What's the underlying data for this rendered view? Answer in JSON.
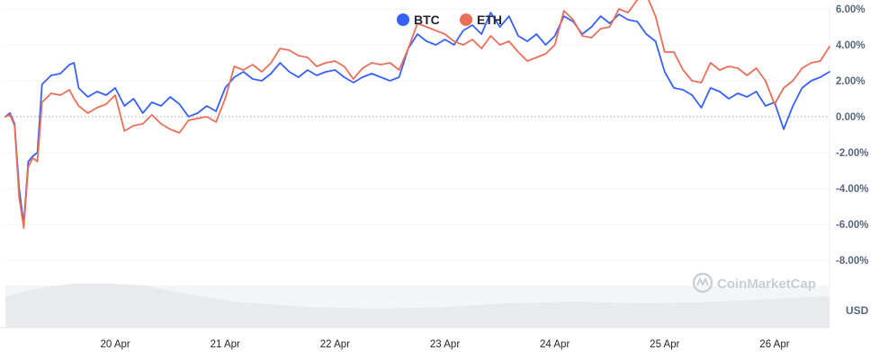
{
  "chart_data": {
    "type": "line",
    "legend": {
      "placement": "top-center"
    },
    "series": [
      {
        "name": "BTC",
        "color": "#3861fb",
        "points": [
          [
            "19 Apr 00:00",
            0.0
          ],
          [
            "19 Apr 01:00",
            0.2
          ],
          [
            "19 Apr 02:00",
            -0.4
          ],
          [
            "19 Apr 03:00",
            -4.0
          ],
          [
            "19 Apr 04:00",
            -6.0
          ],
          [
            "19 Apr 05:00",
            -2.5
          ],
          [
            "19 Apr 06:00",
            -2.2
          ],
          [
            "19 Apr 07:00",
            -2.0
          ],
          [
            "19 Apr 08:00",
            1.8
          ],
          [
            "19 Apr 10:00",
            2.3
          ],
          [
            "19 Apr 12:00",
            2.4
          ],
          [
            "19 Apr 14:00",
            2.9
          ],
          [
            "19 Apr 15:00",
            3.0
          ],
          [
            "19 Apr 16:00",
            1.6
          ],
          [
            "19 Apr 18:00",
            1.1
          ],
          [
            "19 Apr 20:00",
            1.4
          ],
          [
            "19 Apr 22:00",
            1.2
          ],
          [
            "20 Apr 00:00",
            1.6
          ],
          [
            "20 Apr 02:00",
            0.6
          ],
          [
            "20 Apr 04:00",
            1.0
          ],
          [
            "20 Apr 06:00",
            0.2
          ],
          [
            "20 Apr 08:00",
            0.8
          ],
          [
            "20 Apr 10:00",
            0.6
          ],
          [
            "20 Apr 12:00",
            1.1
          ],
          [
            "20 Apr 14:00",
            0.7
          ],
          [
            "20 Apr 16:00",
            0.0
          ],
          [
            "20 Apr 18:00",
            0.2
          ],
          [
            "20 Apr 20:00",
            0.6
          ],
          [
            "20 Apr 22:00",
            0.3
          ],
          [
            "21 Apr 00:00",
            1.6
          ],
          [
            "21 Apr 02:00",
            2.2
          ],
          [
            "21 Apr 04:00",
            2.5
          ],
          [
            "21 Apr 06:00",
            2.1
          ],
          [
            "21 Apr 08:00",
            2.0
          ],
          [
            "21 Apr 10:00",
            2.4
          ],
          [
            "21 Apr 12:00",
            3.0
          ],
          [
            "21 Apr 14:00",
            2.5
          ],
          [
            "21 Apr 16:00",
            2.2
          ],
          [
            "21 Apr 18:00",
            2.6
          ],
          [
            "21 Apr 20:00",
            2.3
          ],
          [
            "21 Apr 22:00",
            2.5
          ],
          [
            "22 Apr 00:00",
            2.6
          ],
          [
            "22 Apr 02:00",
            2.2
          ],
          [
            "22 Apr 04:00",
            1.9
          ],
          [
            "22 Apr 06:00",
            2.2
          ],
          [
            "22 Apr 08:00",
            2.4
          ],
          [
            "22 Apr 10:00",
            2.2
          ],
          [
            "22 Apr 12:00",
            2.0
          ],
          [
            "22 Apr 14:00",
            2.2
          ],
          [
            "22 Apr 16:00",
            3.8
          ],
          [
            "22 Apr 18:00",
            4.6
          ],
          [
            "22 Apr 20:00",
            4.2
          ],
          [
            "22 Apr 22:00",
            4.0
          ],
          [
            "23 Apr 00:00",
            4.3
          ],
          [
            "23 Apr 02:00",
            4.0
          ],
          [
            "23 Apr 04:00",
            4.8
          ],
          [
            "23 Apr 06:00",
            5.1
          ],
          [
            "23 Apr 08:00",
            4.6
          ],
          [
            "23 Apr 10:00",
            5.8
          ],
          [
            "23 Apr 12:00",
            5.0
          ],
          [
            "23 Apr 14:00",
            5.6
          ],
          [
            "23 Apr 16:00",
            4.5
          ],
          [
            "23 Apr 18:00",
            4.2
          ],
          [
            "23 Apr 20:00",
            4.6
          ],
          [
            "23 Apr 22:00",
            4.0
          ],
          [
            "24 Apr 00:00",
            4.5
          ],
          [
            "24 Apr 02:00",
            5.6
          ],
          [
            "24 Apr 04:00",
            5.3
          ],
          [
            "24 Apr 06:00",
            4.6
          ],
          [
            "24 Apr 08:00",
            5.0
          ],
          [
            "24 Apr 10:00",
            5.6
          ],
          [
            "24 Apr 12:00",
            5.2
          ],
          [
            "24 Apr 14:00",
            5.7
          ],
          [
            "24 Apr 16:00",
            5.4
          ],
          [
            "24 Apr 18:00",
            5.3
          ],
          [
            "24 Apr 20:00",
            4.6
          ],
          [
            "24 Apr 22:00",
            4.2
          ],
          [
            "25 Apr 00:00",
            2.5
          ],
          [
            "25 Apr 02:00",
            1.6
          ],
          [
            "25 Apr 04:00",
            1.5
          ],
          [
            "25 Apr 06:00",
            1.2
          ],
          [
            "25 Apr 08:00",
            0.5
          ],
          [
            "25 Apr 10:00",
            1.6
          ],
          [
            "25 Apr 12:00",
            1.4
          ],
          [
            "25 Apr 14:00",
            1.0
          ],
          [
            "25 Apr 16:00",
            1.3
          ],
          [
            "25 Apr 18:00",
            1.1
          ],
          [
            "25 Apr 20:00",
            1.4
          ],
          [
            "25 Apr 22:00",
            0.6
          ],
          [
            "26 Apr 00:00",
            0.8
          ],
          [
            "26 Apr 02:00",
            -0.7
          ],
          [
            "26 Apr 04:00",
            0.6
          ],
          [
            "26 Apr 06:00",
            1.6
          ],
          [
            "26 Apr 08:00",
            2.0
          ],
          [
            "26 Apr 10:00",
            2.2
          ],
          [
            "26 Apr 12:00",
            2.5
          ]
        ]
      },
      {
        "name": "ETH",
        "color": "#ea6f58",
        "points": [
          [
            "19 Apr 00:00",
            0.0
          ],
          [
            "19 Apr 01:00",
            0.1
          ],
          [
            "19 Apr 02:00",
            -0.5
          ],
          [
            "19 Apr 03:00",
            -4.5
          ],
          [
            "19 Apr 04:00",
            -6.2
          ],
          [
            "19 Apr 05:00",
            -2.8
          ],
          [
            "19 Apr 06:00",
            -2.3
          ],
          [
            "19 Apr 07:00",
            -2.5
          ],
          [
            "19 Apr 08:00",
            0.8
          ],
          [
            "19 Apr 10:00",
            1.3
          ],
          [
            "19 Apr 12:00",
            1.2
          ],
          [
            "19 Apr 14:00",
            1.5
          ],
          [
            "19 Apr 15:00",
            1.0
          ],
          [
            "19 Apr 16:00",
            0.6
          ],
          [
            "19 Apr 18:00",
            0.2
          ],
          [
            "19 Apr 20:00",
            0.5
          ],
          [
            "19 Apr 22:00",
            0.7
          ],
          [
            "20 Apr 00:00",
            1.2
          ],
          [
            "20 Apr 02:00",
            -0.8
          ],
          [
            "20 Apr 04:00",
            -0.5
          ],
          [
            "20 Apr 06:00",
            -0.4
          ],
          [
            "20 Apr 08:00",
            0.1
          ],
          [
            "20 Apr 10:00",
            -0.4
          ],
          [
            "20 Apr 12:00",
            -0.7
          ],
          [
            "20 Apr 14:00",
            -0.9
          ],
          [
            "20 Apr 16:00",
            -0.2
          ],
          [
            "20 Apr 18:00",
            -0.1
          ],
          [
            "20 Apr 20:00",
            0.0
          ],
          [
            "20 Apr 22:00",
            -0.3
          ],
          [
            "21 Apr 00:00",
            1.0
          ],
          [
            "21 Apr 02:00",
            2.8
          ],
          [
            "21 Apr 04:00",
            2.6
          ],
          [
            "21 Apr 06:00",
            2.9
          ],
          [
            "21 Apr 08:00",
            2.5
          ],
          [
            "21 Apr 10:00",
            3.0
          ],
          [
            "21 Apr 12:00",
            3.8
          ],
          [
            "21 Apr 14:00",
            3.7
          ],
          [
            "21 Apr 16:00",
            3.4
          ],
          [
            "21 Apr 18:00",
            3.3
          ],
          [
            "21 Apr 20:00",
            2.8
          ],
          [
            "21 Apr 22:00",
            3.0
          ],
          [
            "22 Apr 00:00",
            3.1
          ],
          [
            "22 Apr 02:00",
            2.8
          ],
          [
            "22 Apr 04:00",
            2.1
          ],
          [
            "22 Apr 06:00",
            2.7
          ],
          [
            "22 Apr 08:00",
            3.0
          ],
          [
            "22 Apr 10:00",
            2.9
          ],
          [
            "22 Apr 12:00",
            3.0
          ],
          [
            "22 Apr 14:00",
            2.6
          ],
          [
            "22 Apr 16:00",
            3.8
          ],
          [
            "22 Apr 18:00",
            5.2
          ],
          [
            "22 Apr 20:00",
            5.0
          ],
          [
            "22 Apr 22:00",
            4.8
          ],
          [
            "23 Apr 00:00",
            4.6
          ],
          [
            "23 Apr 02:00",
            4.2
          ],
          [
            "23 Apr 04:00",
            4.0
          ],
          [
            "23 Apr 06:00",
            4.3
          ],
          [
            "23 Apr 08:00",
            3.8
          ],
          [
            "23 Apr 10:00",
            4.5
          ],
          [
            "23 Apr 12:00",
            4.0
          ],
          [
            "23 Apr 14:00",
            4.2
          ],
          [
            "23 Apr 16:00",
            3.6
          ],
          [
            "23 Apr 18:00",
            3.1
          ],
          [
            "23 Apr 20:00",
            3.3
          ],
          [
            "23 Apr 22:00",
            3.5
          ],
          [
            "24 Apr 00:00",
            4.0
          ],
          [
            "24 Apr 02:00",
            5.9
          ],
          [
            "24 Apr 04:00",
            5.4
          ],
          [
            "24 Apr 06:00",
            4.5
          ],
          [
            "24 Apr 08:00",
            4.4
          ],
          [
            "24 Apr 10:00",
            4.9
          ],
          [
            "24 Apr 12:00",
            5.0
          ],
          [
            "24 Apr 14:00",
            6.0
          ],
          [
            "24 Apr 16:00",
            5.8
          ],
          [
            "24 Apr 18:00",
            6.5
          ],
          [
            "24 Apr 20:00",
            6.8
          ],
          [
            "24 Apr 22:00",
            5.6
          ],
          [
            "25 Apr 00:00",
            3.6
          ],
          [
            "25 Apr 02:00",
            3.6
          ],
          [
            "25 Apr 04:00",
            2.6
          ],
          [
            "25 Apr 06:00",
            2.0
          ],
          [
            "25 Apr 08:00",
            1.9
          ],
          [
            "25 Apr 10:00",
            3.0
          ],
          [
            "25 Apr 12:00",
            2.6
          ],
          [
            "25 Apr 14:00",
            2.8
          ],
          [
            "25 Apr 16:00",
            2.7
          ],
          [
            "25 Apr 18:00",
            2.3
          ],
          [
            "25 Apr 20:00",
            2.7
          ],
          [
            "25 Apr 22:00",
            2.0
          ],
          [
            "26 Apr 00:00",
            0.7
          ],
          [
            "26 Apr 02:00",
            1.6
          ],
          [
            "26 Apr 04:00",
            2.0
          ],
          [
            "26 Apr 06:00",
            2.7
          ],
          [
            "26 Apr 08:00",
            3.0
          ],
          [
            "26 Apr 10:00",
            3.1
          ],
          [
            "26 Apr 12:00",
            3.9
          ]
        ]
      }
    ],
    "x_ticks": [
      "20 Apr",
      "21 Apr",
      "22 Apr",
      "23 Apr",
      "24 Apr",
      "25 Apr",
      "26 Apr"
    ],
    "xlim": [
      "19 Apr 00:00",
      "26 Apr 12:00"
    ],
    "y_ticks": [
      {
        "value": 6,
        "label": "6.00%"
      },
      {
        "value": 4,
        "label": "4.00%"
      },
      {
        "value": 2,
        "label": "2.00%"
      },
      {
        "value": 0,
        "label": "0.00%"
      },
      {
        "value": -2,
        "label": "-2.00%"
      },
      {
        "value": -4,
        "label": "-4.00%"
      },
      {
        "value": -6,
        "label": "-6.00%"
      },
      {
        "value": -8,
        "label": "-8.00%"
      }
    ],
    "ylim": [
      -8,
      6
    ],
    "unit_label": "USD",
    "grid": true,
    "zero_line_style": "dotted"
  },
  "watermark": {
    "text": "CoinMarketCap"
  }
}
